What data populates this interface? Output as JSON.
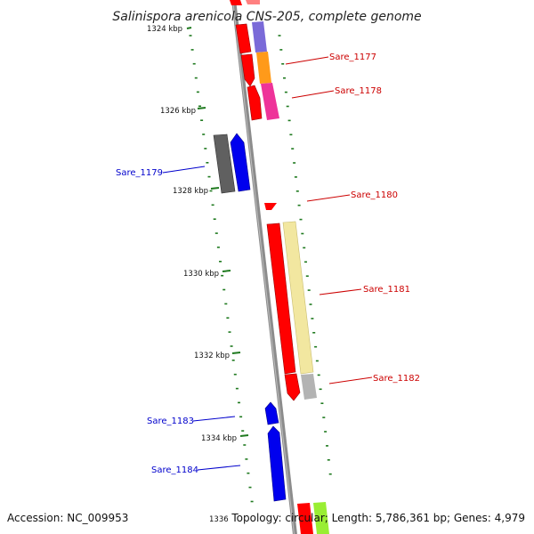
{
  "title": "Salinispora arenicola CNS-205, complete genome",
  "footer": {
    "accession": "Accession: NC_009953",
    "topology": "Topology: circular; Length: 5,786,361 bp; Genes: 4,979"
  },
  "colors": {
    "forward_label": "#cc0000",
    "reverse_label": "#0000cc",
    "backbone": "#8c8c8c",
    "tick": "#1f7a1f"
  },
  "kbp_markers": [
    "1324 kbp",
    "1326 kbp",
    "1328 kbp",
    "1330 kbp",
    "1332 kbp",
    "1334 kbp",
    "1336"
  ],
  "gene_labels": {
    "sare_1177": "Sare_1177",
    "sare_1178": "Sare_1178",
    "sare_1179": "Sare_1179",
    "sare_1180": "Sare_1180",
    "sare_1181": "Sare_1181",
    "sare_1182": "Sare_1182",
    "sare_1183": "Sare_1183",
    "sare_1184": "Sare_1184"
  }
}
